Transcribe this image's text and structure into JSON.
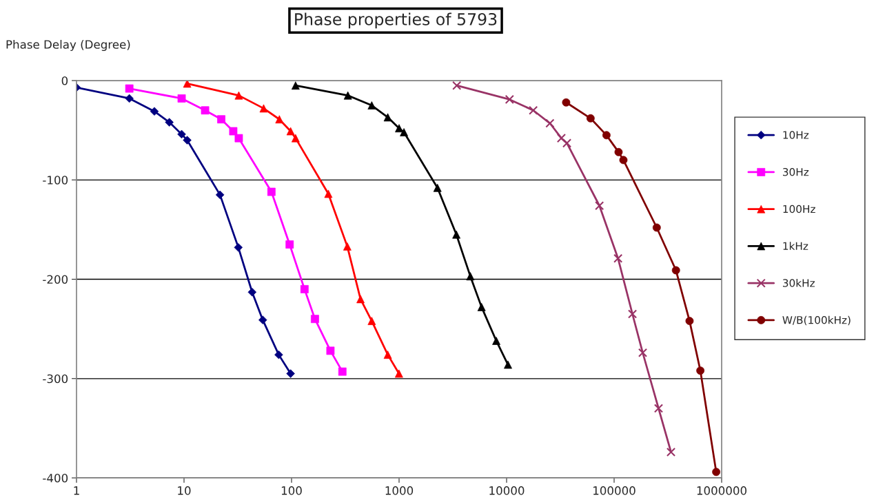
{
  "chart_data": {
    "type": "line",
    "title": "Phase properties of 5793",
    "ylabel": "Phase Delay (Degree)",
    "log": "x",
    "xlim": [
      1,
      1000000
    ],
    "xticks": [
      1,
      10,
      100,
      1000,
      10000,
      100000,
      1000000
    ],
    "ylim": [
      -400,
      0
    ],
    "yticks": [
      -400,
      -300,
      -200,
      -100,
      0
    ],
    "grid": "y",
    "legend": "right",
    "series": [
      {
        "name": "10Hz",
        "color": "#000080",
        "marker": "diamond",
        "x": [
          1,
          3.1,
          5.3,
          7.3,
          9.5,
          10.7,
          21.6,
          32,
          43,
          54,
          76,
          98
        ],
        "values": [
          -7,
          -18,
          -31,
          -42,
          -54,
          -60,
          -115,
          -168,
          -213,
          -241,
          -276,
          -295
        ]
      },
      {
        "name": "30Hz",
        "color": "#ff00ff",
        "marker": "square",
        "x": [
          3.1,
          9.5,
          15.7,
          22.2,
          28.7,
          32.3,
          65,
          96,
          132,
          165,
          230,
          297
        ],
        "values": [
          -8,
          -18,
          -30,
          -39,
          -51,
          -58,
          -112,
          -165,
          -210,
          -240,
          -272,
          -293
        ]
      },
      {
        "name": "100Hz",
        "color": "#ff0000",
        "marker": "triangle",
        "x": [
          10.7,
          32.3,
          55,
          77,
          98,
          109,
          220,
          330,
          438,
          557,
          785,
          998
        ],
        "values": [
          -3,
          -15,
          -28,
          -39,
          -51,
          -58,
          -114,
          -167,
          -220,
          -242,
          -276,
          -295
        ]
      },
      {
        "name": "1kHz",
        "color": "#000000",
        "marker": "triangle",
        "x": [
          109,
          334,
          557,
          785,
          1000,
          1110,
          2275,
          3410,
          4600,
          5850,
          8020,
          10300
        ],
        "values": [
          -5,
          -15,
          -25,
          -37,
          -48,
          -52,
          -108,
          -155,
          -197,
          -228,
          -262,
          -286
        ]
      },
      {
        "name": "30kHz",
        "color": "#993366",
        "marker": "cross",
        "x": [
          3440,
          10650,
          17700,
          25300,
          32300,
          36400,
          73000,
          108700,
          148000,
          184500,
          259000,
          338000
        ],
        "values": [
          -5,
          -19,
          -30,
          -43,
          -58,
          -63,
          -126,
          -179,
          -235,
          -274,
          -330,
          -374
        ]
      },
      {
        "name": "W/B(100kHz)",
        "color": "#800000",
        "marker": "circle",
        "x": [
          35800,
          60400,
          84900,
          110000,
          122000,
          249000,
          376000,
          503000,
          634000,
          890000
        ],
        "values": [
          -22,
          -38,
          -55,
          -72,
          -80,
          -148,
          -191,
          -242,
          -292,
          -394
        ]
      }
    ]
  }
}
